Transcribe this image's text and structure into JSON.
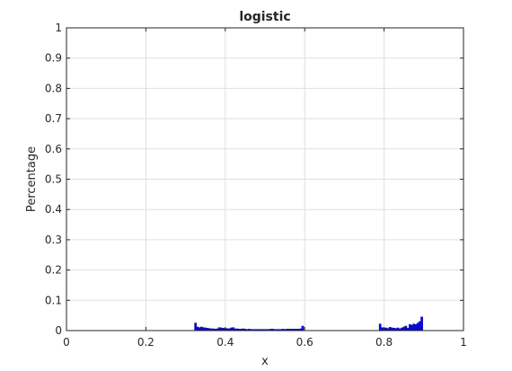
{
  "chart_data": {
    "type": "bar",
    "title": "logistic",
    "xlabel": "x",
    "ylabel": "Percentage",
    "xlim": [
      0,
      1
    ],
    "ylim": [
      0,
      1
    ],
    "grid": true,
    "bar_color": "#0000ff",
    "bar_edge_color": "#1a1a8c",
    "xticks": [
      "0",
      "0.2",
      "0.4",
      "0.6",
      "0.8",
      "1"
    ],
    "yticks": [
      "0",
      "0.1",
      "0.2",
      "0.3",
      "0.4",
      "0.5",
      "0.6",
      "0.7",
      "0.8",
      "0.9",
      "1"
    ],
    "bin_width": 0.005,
    "bins": [
      {
        "x": 0.325,
        "y": 0.025
      },
      {
        "x": 0.33,
        "y": 0.012
      },
      {
        "x": 0.335,
        "y": 0.01
      },
      {
        "x": 0.34,
        "y": 0.012
      },
      {
        "x": 0.345,
        "y": 0.01
      },
      {
        "x": 0.35,
        "y": 0.009
      },
      {
        "x": 0.355,
        "y": 0.008
      },
      {
        "x": 0.36,
        "y": 0.007
      },
      {
        "x": 0.365,
        "y": 0.006
      },
      {
        "x": 0.37,
        "y": 0.006
      },
      {
        "x": 0.375,
        "y": 0.005
      },
      {
        "x": 0.38,
        "y": 0.006
      },
      {
        "x": 0.385,
        "y": 0.01
      },
      {
        "x": 0.39,
        "y": 0.009
      },
      {
        "x": 0.395,
        "y": 0.008
      },
      {
        "x": 0.4,
        "y": 0.007
      },
      {
        "x": 0.405,
        "y": 0.007
      },
      {
        "x": 0.41,
        "y": 0.006
      },
      {
        "x": 0.415,
        "y": 0.009
      },
      {
        "x": 0.42,
        "y": 0.01
      },
      {
        "x": 0.425,
        "y": 0.006
      },
      {
        "x": 0.43,
        "y": 0.006
      },
      {
        "x": 0.435,
        "y": 0.005
      },
      {
        "x": 0.44,
        "y": 0.005
      },
      {
        "x": 0.445,
        "y": 0.006
      },
      {
        "x": 0.45,
        "y": 0.005
      },
      {
        "x": 0.455,
        "y": 0.004
      },
      {
        "x": 0.46,
        "y": 0.005
      },
      {
        "x": 0.465,
        "y": 0.004
      },
      {
        "x": 0.47,
        "y": 0.004
      },
      {
        "x": 0.475,
        "y": 0.004
      },
      {
        "x": 0.48,
        "y": 0.004
      },
      {
        "x": 0.485,
        "y": 0.004
      },
      {
        "x": 0.49,
        "y": 0.004
      },
      {
        "x": 0.495,
        "y": 0.004
      },
      {
        "x": 0.5,
        "y": 0.004
      },
      {
        "x": 0.505,
        "y": 0.004
      },
      {
        "x": 0.51,
        "y": 0.004
      },
      {
        "x": 0.515,
        "y": 0.005
      },
      {
        "x": 0.52,
        "y": 0.005
      },
      {
        "x": 0.525,
        "y": 0.004
      },
      {
        "x": 0.53,
        "y": 0.004
      },
      {
        "x": 0.535,
        "y": 0.004
      },
      {
        "x": 0.54,
        "y": 0.004
      },
      {
        "x": 0.545,
        "y": 0.005
      },
      {
        "x": 0.55,
        "y": 0.004
      },
      {
        "x": 0.555,
        "y": 0.005
      },
      {
        "x": 0.56,
        "y": 0.005
      },
      {
        "x": 0.565,
        "y": 0.005
      },
      {
        "x": 0.57,
        "y": 0.005
      },
      {
        "x": 0.575,
        "y": 0.005
      },
      {
        "x": 0.58,
        "y": 0.005
      },
      {
        "x": 0.585,
        "y": 0.005
      },
      {
        "x": 0.59,
        "y": 0.006
      },
      {
        "x": 0.595,
        "y": 0.015
      },
      {
        "x": 0.79,
        "y": 0.022
      },
      {
        "x": 0.795,
        "y": 0.01
      },
      {
        "x": 0.8,
        "y": 0.008
      },
      {
        "x": 0.805,
        "y": 0.009
      },
      {
        "x": 0.81,
        "y": 0.007
      },
      {
        "x": 0.815,
        "y": 0.011
      },
      {
        "x": 0.82,
        "y": 0.009
      },
      {
        "x": 0.825,
        "y": 0.008
      },
      {
        "x": 0.83,
        "y": 0.007
      },
      {
        "x": 0.835,
        "y": 0.009
      },
      {
        "x": 0.84,
        "y": 0.006
      },
      {
        "x": 0.845,
        "y": 0.009
      },
      {
        "x": 0.85,
        "y": 0.012
      },
      {
        "x": 0.855,
        "y": 0.015
      },
      {
        "x": 0.86,
        "y": 0.008
      },
      {
        "x": 0.865,
        "y": 0.02
      },
      {
        "x": 0.87,
        "y": 0.018
      },
      {
        "x": 0.875,
        "y": 0.022
      },
      {
        "x": 0.88,
        "y": 0.02
      },
      {
        "x": 0.885,
        "y": 0.025
      },
      {
        "x": 0.89,
        "y": 0.03
      },
      {
        "x": 0.895,
        "y": 0.045
      }
    ]
  }
}
